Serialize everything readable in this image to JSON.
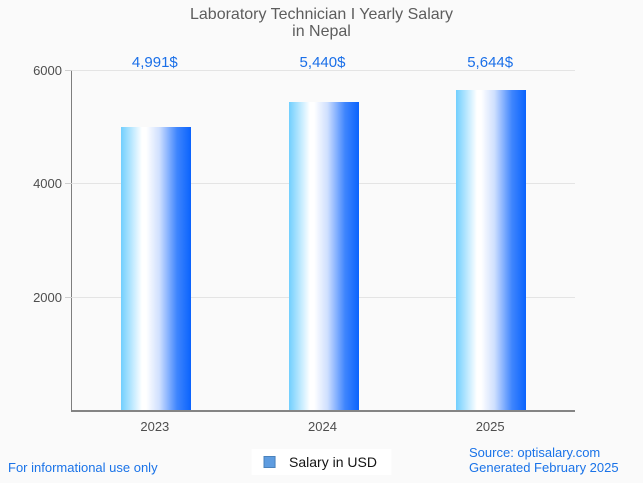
{
  "title": {
    "line1": "Laboratory Technician I Yearly Salary",
    "line2": "in Nepal"
  },
  "legend": {
    "label": "Salary in USD",
    "swatch_color": "#5e9ce0"
  },
  "footer": {
    "disclaimer": "For informational use only",
    "source": "Source: optisalary.com",
    "generated": "Generated February 2025"
  },
  "colors": {
    "accent_blue": "#1a73e8",
    "value_label_blue": "#1a6fe8",
    "title_gray": "#5d5d5d",
    "axis_text_gray": "#4e4e4e",
    "gridline_gray": "#e4e4e4",
    "background": "#fafafa",
    "bar_gradient_left": "#71cffe",
    "bar_gradient_mid": "#ffffff",
    "bar_gradient_right": "#0a63fd"
  },
  "chart_data": {
    "type": "bar",
    "title": "Laboratory Technician I Yearly Salary in Nepal",
    "categories": [
      "2023",
      "2024",
      "2025"
    ],
    "values": [
      4991,
      5440,
      5644
    ],
    "value_labels": [
      "4,991$",
      "5,440$",
      "5,644$"
    ],
    "series_name": "Salary in USD",
    "xlabel": "",
    "ylabel": "",
    "ylim": [
      0,
      6000
    ],
    "yticks": [
      2000,
      4000,
      6000
    ],
    "grid": true,
    "legend_position": "bottom"
  }
}
